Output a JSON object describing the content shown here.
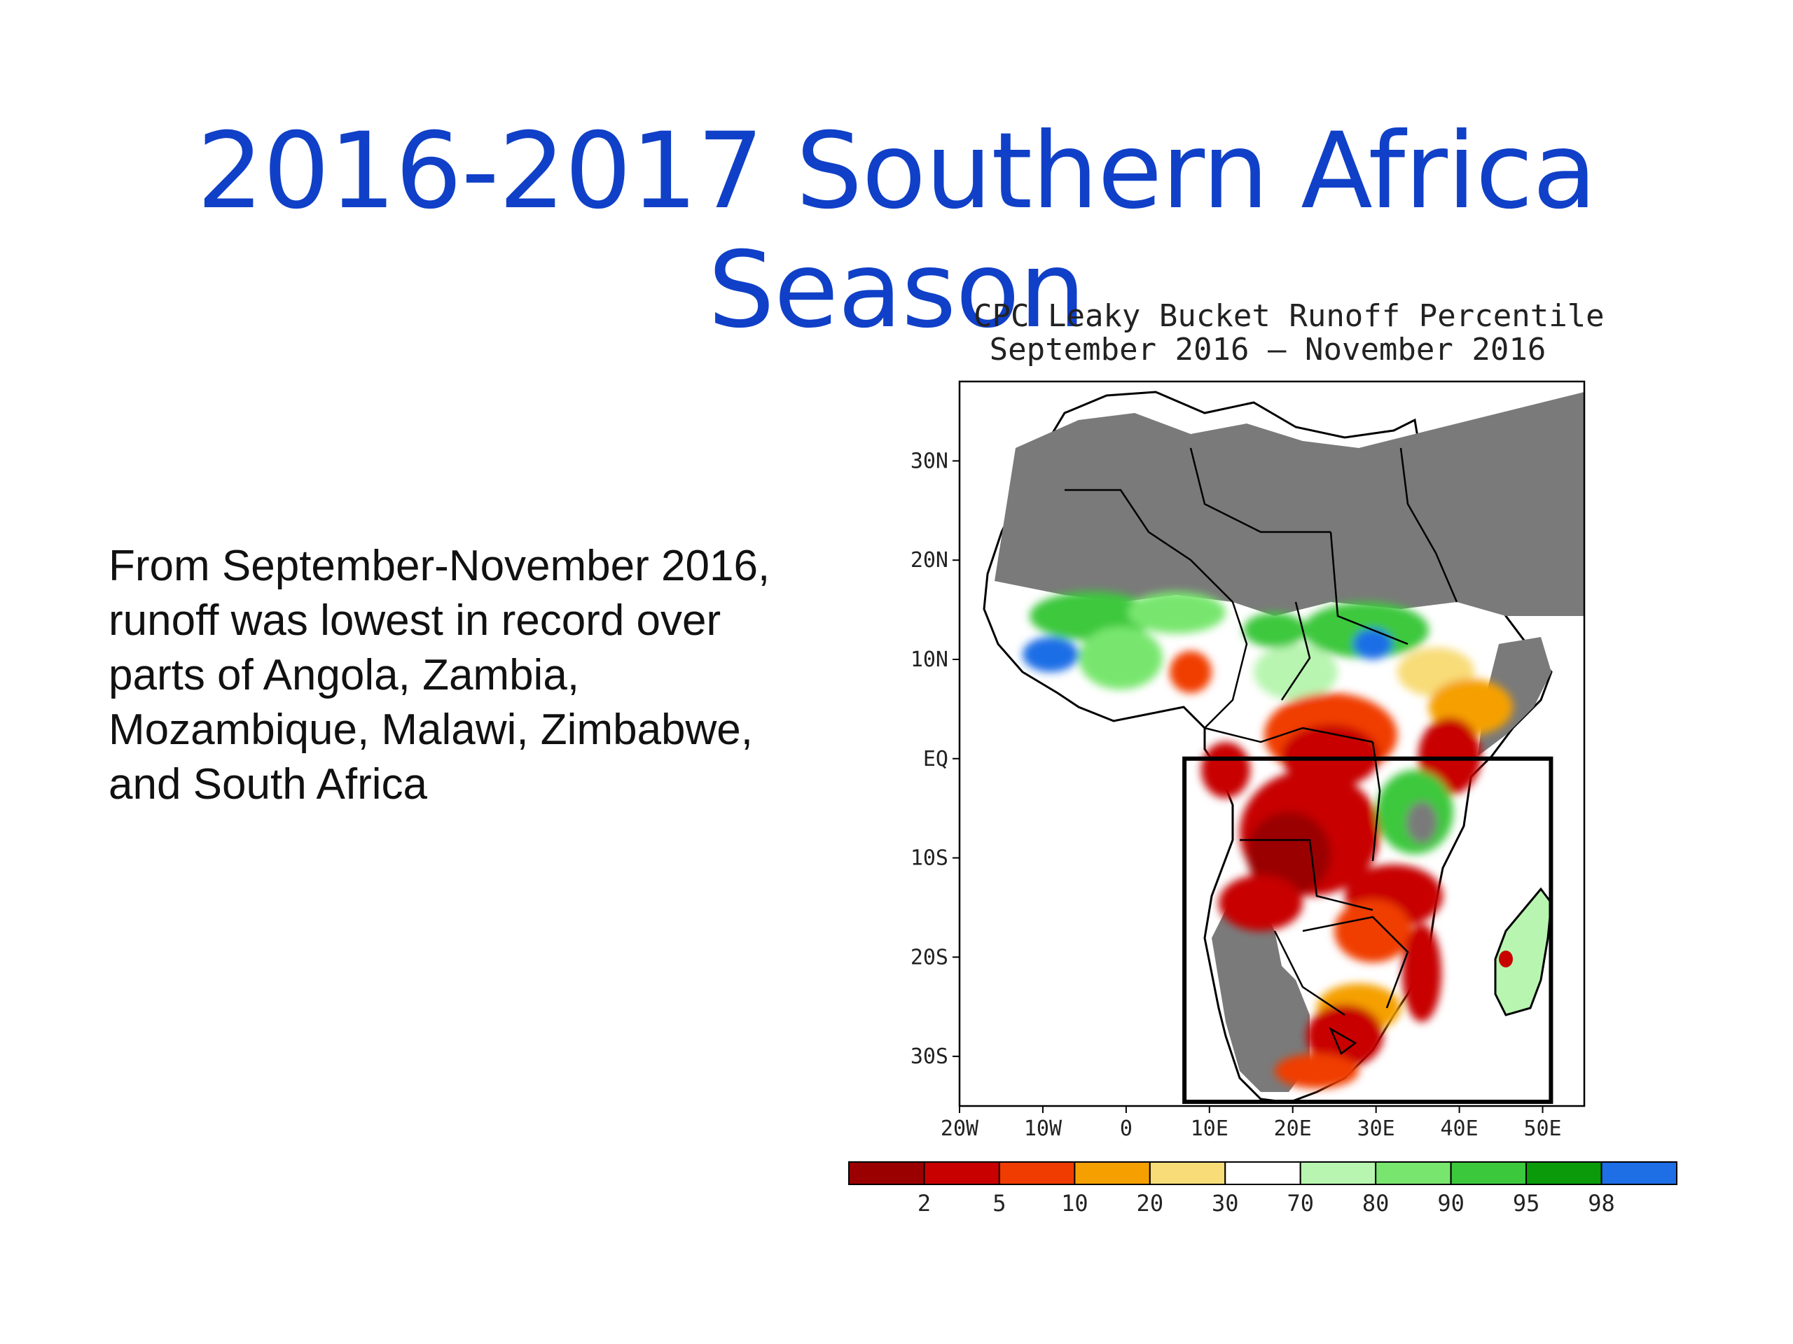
{
  "slide": {
    "title": "2016-2017 Southern Africa Season",
    "body": "From September-November 2016, runoff was lowest in record over parts of Angola, Zambia, Mozambique, Malawi, Zimbabwe, and South Africa"
  },
  "map": {
    "title_line1": "CPC Leaky Bucket Runoff Percentile",
    "title_line2": "September 2016 – November 2016",
    "lat_labels": [
      "30N",
      "20N",
      "10N",
      "EQ",
      "10S",
      "20S",
      "30S"
    ],
    "lon_labels": [
      "20W",
      "10W",
      "0",
      "10E",
      "20E",
      "30E",
      "40E",
      "50E"
    ],
    "lat_values": [
      30,
      20,
      10,
      0,
      -10,
      -20,
      -30
    ],
    "lon_values": [
      -20,
      -10,
      0,
      10,
      20,
      30,
      40,
      50
    ],
    "lon_range": [
      -20,
      55
    ],
    "lat_range": [
      -35,
      38
    ],
    "highlight_box": {
      "lon": [
        7,
        51
      ],
      "lat": [
        -35,
        0
      ]
    },
    "colors": {
      "land_no_data": "#7a7a7a",
      "normal": "#ffffff",
      "border": "#000000"
    },
    "legend": {
      "colors": [
        "#9a0000",
        "#c80000",
        "#f03c00",
        "#f5a000",
        "#f8dc78",
        "#ffffff",
        "#b8f5b0",
        "#78e66e",
        "#3cc83c",
        "#0a9a0a",
        "#1e6ee6"
      ],
      "labels": [
        "2",
        "5",
        "10",
        "20",
        "30",
        "70",
        "80",
        "90",
        "95",
        "98"
      ]
    }
  }
}
